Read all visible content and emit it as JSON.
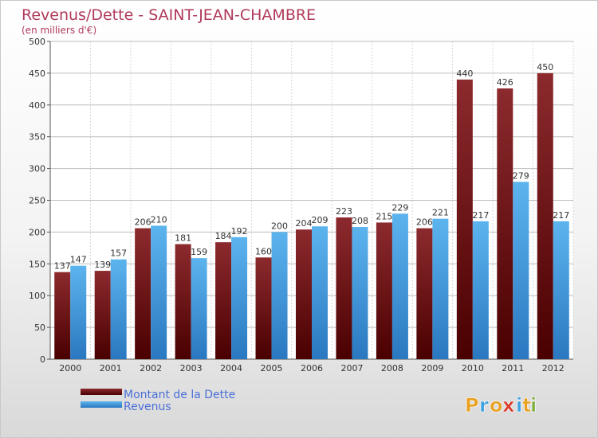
{
  "chart_data": {
    "type": "bar",
    "title": "Revenus/Dette - SAINT-JEAN-CHAMBRE",
    "subtitle": "(en milliers d'€)",
    "categories": [
      "2000",
      "2001",
      "2002",
      "2003",
      "2004",
      "2005",
      "2006",
      "2007",
      "2008",
      "2009",
      "2010",
      "2011",
      "2012"
    ],
    "series": [
      {
        "name": "Montant de la Dette",
        "values": [
          137,
          139,
          206,
          181,
          184,
          160,
          204,
          223,
          215,
          206,
          440,
          426,
          450
        ],
        "color": "#7a1416"
      },
      {
        "name": "Revenus",
        "values": [
          147,
          157,
          210,
          159,
          192,
          200,
          209,
          208,
          229,
          221,
          217,
          279,
          217
        ],
        "color": "#3a9be0"
      }
    ],
    "ylim": [
      0,
      500
    ],
    "yticks": [
      0,
      50,
      100,
      150,
      200,
      250,
      300,
      350,
      400,
      450,
      500
    ],
    "grid": true,
    "legend_position": "bottom-left"
  },
  "branding": {
    "logo_letters": [
      "P",
      "r",
      "o",
      "x",
      "i",
      "t",
      "i"
    ],
    "logo_colors": [
      "#e8a020",
      "#3aa0e0",
      "#e8a020",
      "#d83a2a",
      "#3aa0e0",
      "#e8a020",
      "#7fb040"
    ]
  }
}
